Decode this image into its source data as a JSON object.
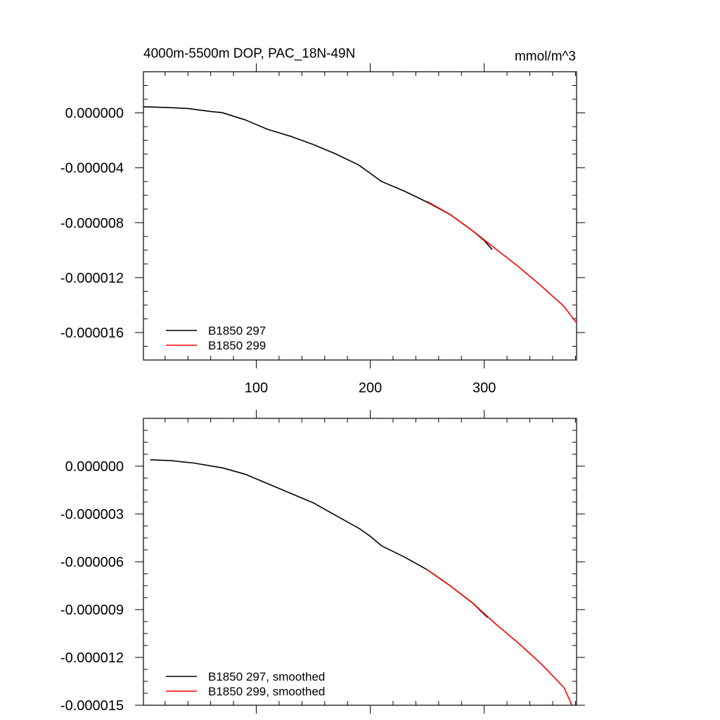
{
  "figure": {
    "title_left": "4000m-5500m DOP, PAC_18N-49N",
    "title_right": "mmol/m^3"
  },
  "chart_data": [
    {
      "type": "line",
      "title": "4000m-5500m DOP, PAC_18N-49N",
      "units": "mmol/m^3",
      "xlim": [
        1,
        381
      ],
      "ylim": [
        -1.8e-05,
        3e-06
      ],
      "x_ticks": [
        100,
        200,
        300
      ],
      "x_tick_labels": [
        "100",
        "200",
        "300"
      ],
      "y_ticks": [
        0,
        -4e-06,
        -8e-06,
        -1.2e-05,
        -1.6e-05
      ],
      "y_tick_labels": [
        "0.000000",
        "-0.000004",
        "-0.000008",
        "-0.000012",
        "-0.000016"
      ],
      "grid": false,
      "legend_position": "bottom-left",
      "series": [
        {
          "name": "B1850 297",
          "color": "#000000",
          "x": [
            1,
            20,
            40,
            60,
            70,
            90,
            110,
            130,
            150,
            170,
            190,
            200,
            210,
            230,
            250,
            270,
            290,
            300,
            307
          ],
          "values": [
            4.5e-07,
            4e-07,
            3.2e-07,
            1e-07,
            2e-08,
            -5e-07,
            -1.2e-06,
            -1.7e-06,
            -2.3e-06,
            -3e-06,
            -3.8e-06,
            -4.4e-06,
            -5e-06,
            -5.7e-06,
            -6.5e-06,
            -7.4e-06,
            -8.6e-06,
            -9.3e-06,
            -9.95e-06
          ]
        },
        {
          "name": "B1850 299",
          "color": "#ff0000",
          "x": [
            250,
            270,
            290,
            310,
            330,
            350,
            370,
            381
          ],
          "values": [
            -6.45e-06,
            -7.4e-06,
            -8.6e-06,
            -9.9e-06,
            -1.12e-05,
            -1.26e-05,
            -1.41e-05,
            -1.53e-05
          ]
        }
      ]
    },
    {
      "type": "line",
      "xlim": [
        1,
        381
      ],
      "ylim": [
        -1.5e-05,
        3e-06
      ],
      "x_ticks": [
        100,
        200,
        300
      ],
      "y_ticks": [
        0,
        -3e-06,
        -6e-06,
        -9e-06,
        -1.2e-05,
        -1.5e-05
      ],
      "y_tick_labels": [
        "0.000000",
        "-0.000003",
        "-0.000006",
        "-0.000009",
        "-0.000012",
        "-0.000015"
      ],
      "grid": false,
      "legend_position": "bottom-left",
      "series": [
        {
          "name": "B1850 297, smoothed",
          "color": "#000000",
          "x": [
            7,
            25,
            45,
            70,
            90,
            110,
            130,
            150,
            170,
            190,
            200,
            210,
            230,
            250,
            270,
            290,
            300,
            303
          ],
          "values": [
            4e-07,
            3.5e-07,
            2e-07,
            -1e-07,
            -5e-07,
            -1.1e-06,
            -1.7e-06,
            -2.3e-06,
            -3.1e-06,
            -3.9e-06,
            -4.4e-06,
            -5e-06,
            -5.7e-06,
            -6.5e-06,
            -7.5e-06,
            -8.6e-06,
            -9.3e-06,
            -9.5e-06
          ]
        },
        {
          "name": "B1850 299, smoothed",
          "color": "#ff0000",
          "x": [
            250,
            270,
            290,
            310,
            330,
            350,
            370,
            377
          ],
          "values": [
            -6.5e-06,
            -7.5e-06,
            -8.6e-06,
            -9.9e-06,
            -1.11e-05,
            -1.24e-05,
            -1.39e-05,
            -1.5e-05
          ]
        }
      ]
    }
  ]
}
